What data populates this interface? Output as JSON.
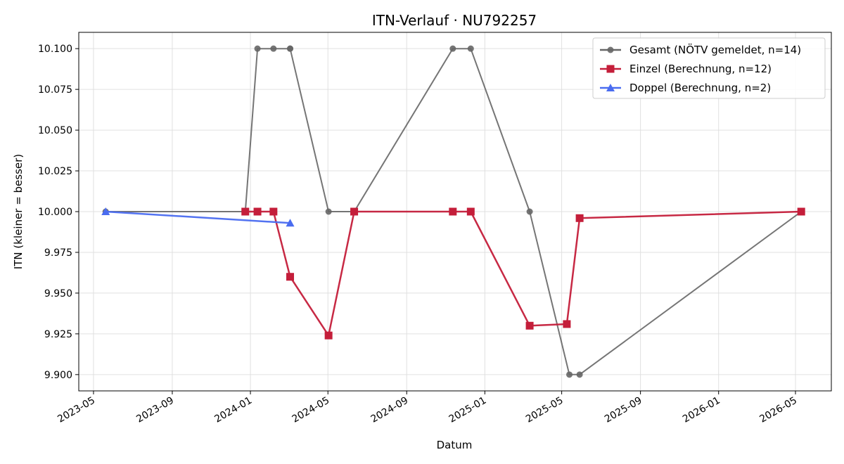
{
  "chart_data": {
    "type": "line",
    "title": "ITN-Verlauf · NU792257",
    "xlabel": "Datum",
    "ylabel": "ITN  (kleiner = besser)",
    "ylim": [
      9.89,
      10.11
    ],
    "xlim": [
      "2023-04-08",
      "2026-06-26"
    ],
    "x_ticks": [
      "2023-05",
      "2023-09",
      "2024-01",
      "2024-05",
      "2024-09",
      "2025-01",
      "2025-05",
      "2025-09",
      "2026-01",
      "2026-05"
    ],
    "y_ticks": [
      9.9,
      9.925,
      9.95,
      9.975,
      10.0,
      10.025,
      10.05,
      10.075,
      10.1
    ],
    "y_tick_labels": [
      "9.900",
      "9.925",
      "9.950",
      "9.975",
      "10.000",
      "10.025",
      "10.050",
      "10.075",
      "10.100"
    ],
    "grid": true,
    "legend_position": "top-right",
    "series": [
      {
        "name": "Gesamt (NÖTV gemeldet, n=14)",
        "color": "#666666",
        "marker": "circle",
        "x": [
          "2023-05-20",
          "2023-12-24",
          "2024-01-12",
          "2024-02-06",
          "2024-03-03",
          "2024-03-03",
          "2024-05-02",
          "2024-06-11",
          "2024-11-12",
          "2024-12-10",
          "2025-03-12",
          "2025-05-13",
          "2025-05-29",
          "2026-05-10"
        ],
        "y": [
          10.0,
          10.0,
          10.1,
          10.1,
          10.1,
          10.1,
          10.0,
          10.0,
          10.1,
          10.1,
          10.0,
          9.9,
          9.9,
          10.0
        ]
      },
      {
        "name": "Einzel (Berechnung, n=12)",
        "color": "#c41e3a",
        "marker": "square",
        "x": [
          "2023-12-24",
          "2024-01-12",
          "2024-02-06",
          "2024-03-03",
          "2024-05-02",
          "2024-06-11",
          "2024-11-12",
          "2024-12-10",
          "2025-03-12",
          "2025-05-09",
          "2025-05-29",
          "2026-05-10"
        ],
        "y": [
          10.0,
          10.0,
          10.0,
          9.96,
          9.924,
          10.0,
          10.0,
          10.0,
          9.93,
          9.931,
          9.996,
          10.0
        ]
      },
      {
        "name": "Doppel (Berechnung, n=2)",
        "color": "#4a6cf0",
        "marker": "triangle",
        "x": [
          "2023-05-20",
          "2024-03-03"
        ],
        "y": [
          10.0,
          9.993
        ]
      }
    ]
  }
}
